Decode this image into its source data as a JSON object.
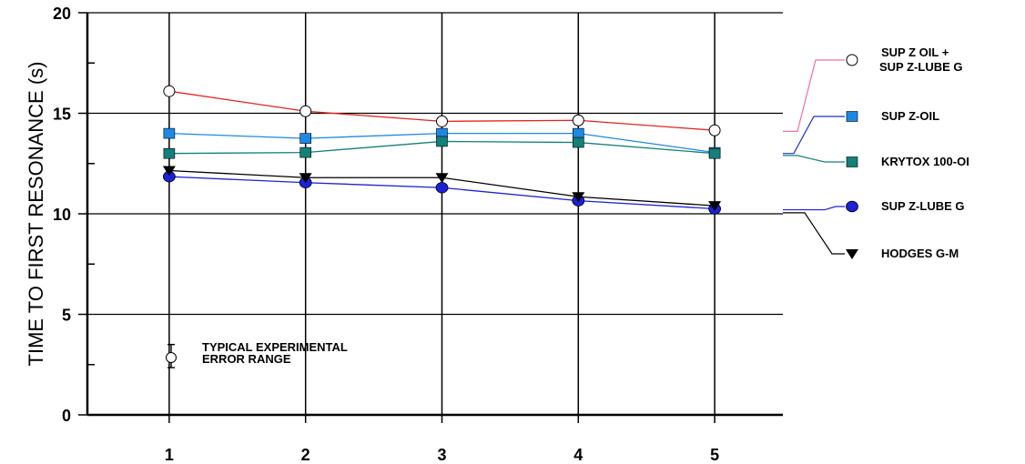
{
  "chart_data": {
    "type": "line",
    "title": "",
    "xlabel": "",
    "ylabel": "TIME TO FIRST RESONANCE (s)",
    "x": [
      1,
      2,
      3,
      4,
      5
    ],
    "xlim": [
      0.4,
      5.5
    ],
    "ylim": [
      0,
      20
    ],
    "yticks": [
      0,
      5,
      10,
      15,
      20
    ],
    "xticks": [
      1,
      2,
      3,
      4,
      5
    ],
    "grid": true,
    "legend_position": "right",
    "series": [
      {
        "name_lines": [
          "SUP Z OIL +",
          " SUP Z-LUBE G"
        ],
        "marker": "circle-open",
        "color": "#e8221b",
        "leader_color": "#ef6fa8",
        "values": [
          16.1,
          15.1,
          14.6,
          14.65,
          14.15
        ]
      },
      {
        "name_lines": [
          "SUP Z-OIL"
        ],
        "marker": "square",
        "color": "#1e88e5",
        "leader_color": "#1a2fcf",
        "values": [
          14.0,
          13.75,
          14.0,
          14.0,
          13.05
        ]
      },
      {
        "name_lines": [
          "KRYTOX 100-OI"
        ],
        "marker": "square",
        "color": "#13807a",
        "leader_color": "#13807a",
        "values": [
          13.0,
          13.05,
          13.6,
          13.55,
          13.0
        ]
      },
      {
        "name_lines": [
          "SUP Z-LUBE G"
        ],
        "marker": "circle",
        "color": "#1a22d6",
        "leader_color": "#1a22d6",
        "values": [
          11.85,
          11.55,
          11.3,
          10.65,
          10.25
        ]
      },
      {
        "name_lines": [
          "HODGES G-M"
        ],
        "marker": "triangle-down",
        "color": "#000000",
        "leader_color": "#000000",
        "values": [
          12.15,
          11.8,
          11.8,
          10.85,
          10.4
        ]
      }
    ],
    "annotation": {
      "lines": [
        "TYPICAL EXPERIMENTAL",
        "ERROR RANGE"
      ],
      "x": 1.1,
      "y": 2.85,
      "error_low": 2.35,
      "error_high": 3.5
    }
  }
}
